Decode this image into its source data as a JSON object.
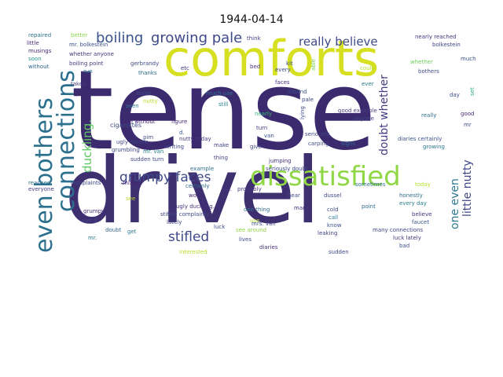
{
  "title": "1944-04-14",
  "words": [
    {
      "text": "tense",
      "color": "#3b2a6e"
    },
    {
      "text": "drivel",
      "color": "#3e2f70"
    },
    {
      "text": "comforts",
      "color": "#d6e021"
    },
    {
      "text": "dissatisfied",
      "color": "#8fd744"
    },
    {
      "text": "connections",
      "color": "#2c6f8e"
    },
    {
      "text": "even bothers",
      "color": "#2d708e"
    },
    {
      "text": "growing pale",
      "color": "#3f4889"
    },
    {
      "text": "boiling",
      "color": "#3b528b"
    },
    {
      "text": "really believe",
      "color": "#3e4a89"
    },
    {
      "text": "grumpy faces",
      "color": "#3e4989"
    },
    {
      "text": "stifled",
      "color": "#3f4788"
    },
    {
      "text": "duckling.",
      "color": "#5ec962"
    },
    {
      "text": "doubt whether",
      "color": "#433e85"
    },
    {
      "text": "one even",
      "color": "#2a788e"
    },
    {
      "text": "little nutty",
      "color": "#3f4788"
    },
    {
      "text": "repaired",
      "color": "#2c728e"
    },
    {
      "text": "better",
      "color": "#89d548"
    },
    {
      "text": "little",
      "color": "#472c7a"
    },
    {
      "text": "musings",
      "color": "#482878"
    },
    {
      "text": "soon",
      "color": "#21918c"
    },
    {
      "text": "without",
      "color": "#31688e"
    },
    {
      "text": "mr. bolkestein",
      "color": "#3b528b"
    },
    {
      "text": "whether anyone",
      "color": "#46327e"
    },
    {
      "text": "boiling point",
      "color": "#453781"
    },
    {
      "text": "run",
      "color": "#26828e"
    },
    {
      "text": "gerbrandy",
      "color": "#3e4a89"
    },
    {
      "text": "thanks",
      "color": "#2f6c8e"
    },
    {
      "text": "think",
      "color": "#404387"
    },
    {
      "text": "etc",
      "color": "#472f7d"
    },
    {
      "text": "bed",
      "color": "#46307e"
    },
    {
      "text": "kit",
      "color": "#3b528b"
    },
    {
      "text": "every",
      "color": "#3e4989"
    },
    {
      "text": "able",
      "color": "#7ad151"
    },
    {
      "text": "could",
      "color": "#b5de2b"
    },
    {
      "text": "nearly reached",
      "color": "#453781"
    },
    {
      "text": "bolkestein",
      "color": "#404688"
    },
    {
      "text": "whether",
      "color": "#6ccd5a"
    },
    {
      "text": "much",
      "color": "#3b528b"
    },
    {
      "text": "bothers",
      "color": "#3e4a89"
    },
    {
      "text": "taken",
      "color": "#443b84"
    },
    {
      "text": "toilet",
      "color": "#3b528b"
    },
    {
      "text": "much use",
      "color": "#2c728e"
    },
    {
      "text": "faces",
      "color": "#46327e"
    },
    {
      "text": "ever",
      "color": "#287c8e"
    },
    {
      "text": "nutty",
      "color": "#b8de29"
    },
    {
      "text": "seen",
      "color": "#2c728e"
    },
    {
      "text": "still",
      "color": "#25858e"
    },
    {
      "text": "around",
      "color": "#3c508b"
    },
    {
      "text": "pale",
      "color": "#404688"
    },
    {
      "text": "day",
      "color": "#3d4d8a"
    },
    {
      "text": "set",
      "color": "#29af7f"
    },
    {
      "text": "pale without",
      "color": "#482475"
    },
    {
      "text": "figure",
      "color": "#482878"
    },
    {
      "text": "nearly",
      "color": "#38b977"
    },
    {
      "text": "lying",
      "color": "#3e4c8a"
    },
    {
      "text": "good example",
      "color": "#433e85"
    },
    {
      "text": "anyone",
      "color": "#414487"
    },
    {
      "text": "really",
      "color": "#2c728e"
    },
    {
      "text": "good",
      "color": "#482374"
    },
    {
      "text": "mr",
      "color": "#3b528b"
    },
    {
      "text": "cigarettes",
      "color": "#3e4989"
    },
    {
      "text": "turn",
      "color": "#453781"
    },
    {
      "text": "van",
      "color": "#3b528b"
    },
    {
      "text": "seriously",
      "color": "#3f4889"
    },
    {
      "text": "diaries certainly",
      "color": "#3a538b"
    },
    {
      "text": "growing",
      "color": "#2a788e"
    },
    {
      "text": "ugly moods",
      "color": "#3f4788"
    },
    {
      "text": "nutty today",
      "color": "#443983"
    },
    {
      "text": "make",
      "color": "#404387"
    },
    {
      "text": "give",
      "color": "#3e4989"
    },
    {
      "text": "carping",
      "color": "#3e4a89"
    },
    {
      "text": "sighs",
      "color": "#31688e"
    },
    {
      "text": "writing",
      "color": "#3e4989"
    },
    {
      "text": "mr. van",
      "color": "#26828e"
    },
    {
      "text": "grumbling",
      "color": "#3f4788"
    },
    {
      "text": "sudden turn",
      "color": "#404387"
    },
    {
      "text": "example",
      "color": "#2c728e"
    },
    {
      "text": "seriously doubt",
      "color": "#3f4788"
    },
    {
      "text": "jumping",
      "color": "#46327e"
    },
    {
      "text": "mixed",
      "color": "#482475"
    },
    {
      "text": "certainly",
      "color": "#2f6b8e"
    },
    {
      "text": "etc.",
      "color": "#453781"
    },
    {
      "text": "probably",
      "color": "#453781"
    },
    {
      "text": "today",
      "color": "#b5de2b"
    },
    {
      "text": "reached",
      "color": "#2c728e"
    },
    {
      "text": "everyone",
      "color": "#433e85"
    },
    {
      "text": "complaints",
      "color": "#3f4788"
    },
    {
      "text": "see",
      "color": "#b5de2b"
    },
    {
      "text": "grumpy",
      "color": "#46307e"
    },
    {
      "text": "van d.",
      "color": "#3e4a89"
    },
    {
      "text": "ugly duckling.",
      "color": "#46307e"
    },
    {
      "text": "hear",
      "color": "#3e4989"
    },
    {
      "text": "dussel",
      "color": "#3e4989"
    },
    {
      "text": "honestly",
      "color": "#2d708e"
    },
    {
      "text": "every day",
      "color": "#277f8e"
    },
    {
      "text": "one thing",
      "color": "#2c728e"
    },
    {
      "text": "many",
      "color": "#46307e"
    },
    {
      "text": "point",
      "color": "#31688e"
    },
    {
      "text": "cold",
      "color": "#3e4a89"
    },
    {
      "text": "believe",
      "color": "#46337f"
    },
    {
      "text": "faucet",
      "color": "#3b528b"
    },
    {
      "text": "stifled complaints",
      "color": "#3f4788"
    },
    {
      "text": "lately",
      "color": "#414487"
    },
    {
      "text": "mrs. van",
      "color": "#3e4a89"
    },
    {
      "text": "luck",
      "color": "#3e4989"
    },
    {
      "text": "call",
      "color": "#2a788e"
    },
    {
      "text": "know",
      "color": "#3b528b"
    },
    {
      "text": "many connections",
      "color": "#414487"
    },
    {
      "text": "leaking",
      "color": "#404387"
    },
    {
      "text": "luck lately",
      "color": "#443983"
    },
    {
      "text": "lives",
      "color": "#3e4989"
    },
    {
      "text": "see around",
      "color": "#8fd744"
    },
    {
      "text": "diaries",
      "color": "#46307e"
    },
    {
      "text": "interested",
      "color": "#b5de2b"
    },
    {
      "text": "sudden",
      "color": "#3e4989"
    },
    {
      "text": "bad",
      "color": "#3b528b"
    },
    {
      "text": "mr.",
      "color": "#2a788e"
    },
    {
      "text": "doubt",
      "color": "#31688e"
    },
    {
      "text": "get",
      "color": "#2a788e"
    },
    {
      "text": "pim",
      "color": "#3b528b"
    },
    {
      "text": "worse",
      "color": "#482878"
    },
    {
      "text": "d.",
      "color": "#3b528b"
    },
    {
      "text": "thing",
      "color": "#414487"
    },
    {
      "text": "use",
      "color": "#b5de2b"
    },
    {
      "text": "sometimes",
      "color": "#2c728e"
    }
  ]
}
